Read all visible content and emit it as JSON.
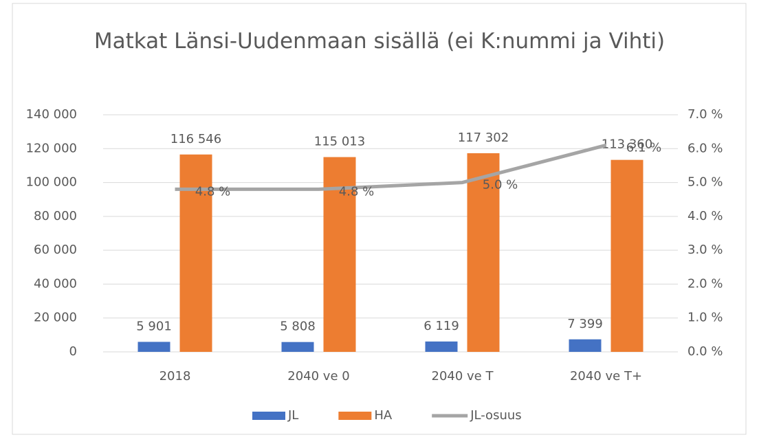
{
  "chart_data": {
    "type": "bar",
    "title": "Matkat Länsi-Uudenmaan sisällä (ei K:nummi ja Vihti)",
    "categories": [
      "2018",
      "2040 ve 0",
      "2040 ve T",
      "2040 ve T+"
    ],
    "series": [
      {
        "name": "JL",
        "color": "#4472c4",
        "values": [
          5901,
          5808,
          6119,
          7399
        ],
        "value_labels": [
          "5 901",
          "5 808",
          "6 119",
          "7 399"
        ]
      },
      {
        "name": "HA",
        "color": "#ed7d31",
        "values": [
          116546,
          115013,
          117302,
          113360
        ],
        "value_labels": [
          "116 546",
          "115 013",
          "117 302",
          "113 360"
        ]
      },
      {
        "name": "JL-osuus",
        "color": "#a5a5a5",
        "type": "line",
        "axis": "y2",
        "values": [
          4.8,
          4.8,
          5.0,
          6.1
        ],
        "value_labels": [
          "4.8 %",
          "4.8 %",
          "5.0 %",
          "6.1 %"
        ]
      }
    ],
    "ylim": [
      0,
      140000
    ],
    "yticks": [
      0,
      {
        "value": 20000,
        "label": "20 000"
      },
      {
        "value": 40000,
        "label": "40 000"
      },
      {
        "value": 60000,
        "label": "60 000"
      },
      {
        "value": 80000,
        "label": "80 000"
      },
      {
        "value": 100000,
        "label": "100 000"
      },
      {
        "value": 120000,
        "label": "120 000"
      },
      {
        "value": 140000,
        "label": "140 000"
      }
    ],
    "y2lim": [
      0,
      7
    ],
    "y2ticks": [
      {
        "value": 0,
        "label": "0.0 %"
      },
      {
        "value": 1,
        "label": "1.0 %"
      },
      {
        "value": 2,
        "label": "2.0 %"
      },
      {
        "value": 3,
        "label": "3.0 %"
      },
      {
        "value": 4,
        "label": "4.0 %"
      },
      {
        "value": 5,
        "label": "5.0 %"
      },
      {
        "value": 6,
        "label": "6.0 %"
      },
      {
        "value": 7,
        "label": "7.0 %"
      }
    ],
    "grid": true,
    "legend": "bottom"
  }
}
